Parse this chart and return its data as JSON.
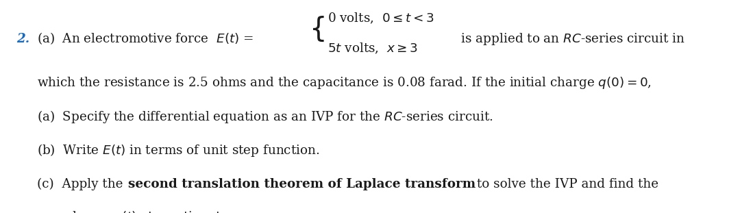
{
  "background_color": "#ffffff",
  "figsize": [
    10.8,
    3.11
  ],
  "dpi": 100,
  "text_color": "#1a1a1a",
  "blue_color": "#1a6bbf",
  "font_size_main": 13.2
}
